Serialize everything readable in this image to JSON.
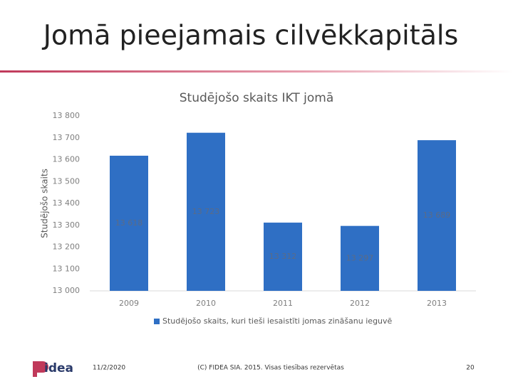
{
  "slide": {
    "title": "Jomā pieejamais cilvēkkapitāls",
    "logo": "idea",
    "date": "11/2/2020",
    "footer": "(C) FIDEA SIA. 2015. Visas tiesības rezervētas",
    "page_number": "20"
  },
  "chart_data": {
    "type": "bar",
    "title": "Studējošo skaits IKT jomā",
    "y_label": "Studējošo skaits",
    "categories": [
      "2009",
      "2010",
      "2011",
      "2012",
      "2013"
    ],
    "series": [
      {
        "name": "Studējošo skaits, kuri tieši iesaistīti jomas zināšanu ieguvē",
        "color": "#2f6fc4",
        "values": [
          13618,
          13723,
          13312,
          13297,
          13689
        ],
        "value_labels": [
          "13 618",
          "13 723",
          "13 312",
          "13 297",
          "13 689"
        ]
      }
    ],
    "ylim": [
      13000,
      13800
    ],
    "yticks": [
      {
        "value": 13000,
        "label": "13 000"
      },
      {
        "value": 13100,
        "label": "13 100"
      },
      {
        "value": 13200,
        "label": "13 200"
      },
      {
        "value": 13300,
        "label": "13 300"
      },
      {
        "value": 13400,
        "label": "13 400"
      },
      {
        "value": 13500,
        "label": "13 500"
      },
      {
        "value": 13600,
        "label": "13 600"
      },
      {
        "value": 13700,
        "label": "13 700"
      },
      {
        "value": 13800,
        "label": "13 800"
      }
    ],
    "grid": false,
    "legend": "bottom"
  }
}
